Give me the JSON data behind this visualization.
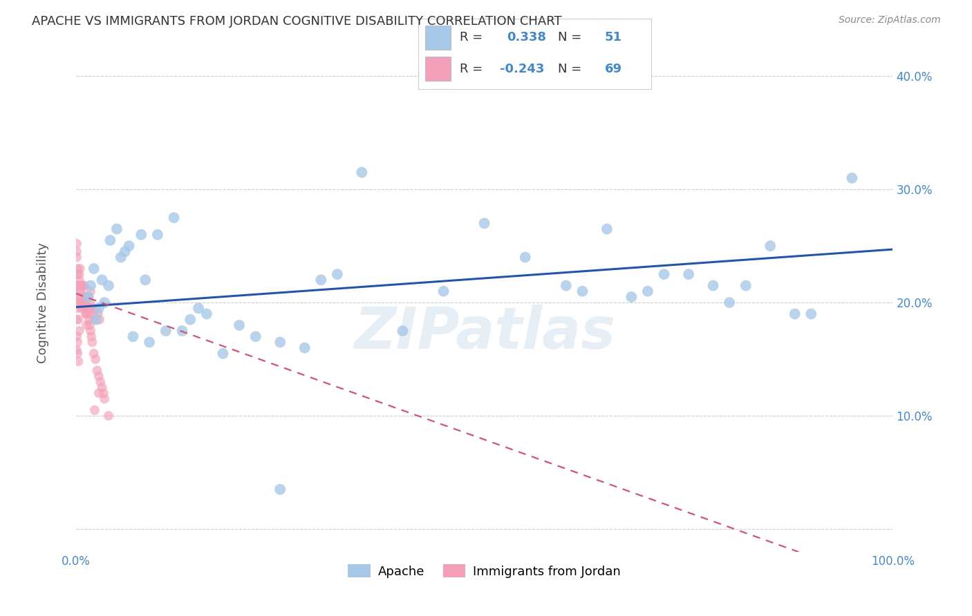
{
  "title": "APACHE VS IMMIGRANTS FROM JORDAN COGNITIVE DISABILITY CORRELATION CHART",
  "source": "Source: ZipAtlas.com",
  "ylabel": "Cognitive Disability",
  "xlim": [
    0.0,
    1.0
  ],
  "ylim": [
    -0.02,
    0.42
  ],
  "xticks": [
    0.0,
    0.1,
    0.2,
    0.3,
    0.4,
    0.5,
    0.6,
    0.7,
    0.8,
    0.9,
    1.0
  ],
  "xticklabels": [
    "0.0%",
    "",
    "",
    "",
    "",
    "",
    "",
    "",
    "",
    "",
    "100.0%"
  ],
  "yticks": [
    0.0,
    0.1,
    0.2,
    0.3,
    0.4
  ],
  "yticklabels": [
    "",
    "10.0%",
    "20.0%",
    "30.0%",
    "40.0%"
  ],
  "blue_color": "#a8c8e8",
  "pink_color": "#f4a0b8",
  "blue_line_color": "#2255aa",
  "pink_line_color": "#cc5577",
  "watermark": "ZIPatlas",
  "blue_scatter_x": [
    0.028,
    0.035,
    0.025,
    0.04,
    0.05,
    0.06,
    0.032,
    0.022,
    0.018,
    0.015,
    0.042,
    0.055,
    0.065,
    0.08,
    0.1,
    0.12,
    0.085,
    0.07,
    0.09,
    0.11,
    0.13,
    0.15,
    0.14,
    0.16,
    0.18,
    0.2,
    0.22,
    0.25,
    0.28,
    0.3,
    0.32,
    0.35,
    0.45,
    0.5,
    0.55,
    0.6,
    0.62,
    0.65,
    0.68,
    0.7,
    0.72,
    0.75,
    0.78,
    0.8,
    0.82,
    0.85,
    0.88,
    0.9,
    0.95,
    0.25,
    0.4
  ],
  "blue_scatter_y": [
    0.195,
    0.2,
    0.185,
    0.215,
    0.265,
    0.245,
    0.22,
    0.23,
    0.215,
    0.205,
    0.255,
    0.24,
    0.25,
    0.26,
    0.26,
    0.275,
    0.22,
    0.17,
    0.165,
    0.175,
    0.175,
    0.195,
    0.185,
    0.19,
    0.155,
    0.18,
    0.17,
    0.165,
    0.16,
    0.22,
    0.225,
    0.315,
    0.21,
    0.27,
    0.24,
    0.215,
    0.21,
    0.265,
    0.205,
    0.21,
    0.225,
    0.225,
    0.215,
    0.2,
    0.215,
    0.25,
    0.19,
    0.19,
    0.31,
    0.035,
    0.175
  ],
  "pink_scatter_x": [
    0.003,
    0.005,
    0.007,
    0.008,
    0.01,
    0.012,
    0.014,
    0.016,
    0.018,
    0.02,
    0.004,
    0.006,
    0.009,
    0.011,
    0.013,
    0.015,
    0.017,
    0.019,
    0.021,
    0.023,
    0.025,
    0.027,
    0.029,
    0.002,
    0.003,
    0.004,
    0.005,
    0.006,
    0.007,
    0.008,
    0.009,
    0.01,
    0.011,
    0.012,
    0.013,
    0.014,
    0.015,
    0.016,
    0.017,
    0.018,
    0.019,
    0.02,
    0.022,
    0.024,
    0.026,
    0.028,
    0.03,
    0.032,
    0.034,
    0.001,
    0.002,
    0.003,
    0.004,
    0.002,
    0.001,
    0.001,
    0.002,
    0.003,
    0.001,
    0.001,
    0.002,
    0.001,
    0.002,
    0.003,
    0.001,
    0.023,
    0.028,
    0.035,
    0.04
  ],
  "pink_scatter_y": [
    0.205,
    0.21,
    0.195,
    0.2,
    0.215,
    0.2,
    0.195,
    0.205,
    0.21,
    0.195,
    0.225,
    0.2,
    0.215,
    0.205,
    0.19,
    0.195,
    0.2,
    0.195,
    0.19,
    0.185,
    0.195,
    0.19,
    0.185,
    0.225,
    0.215,
    0.22,
    0.23,
    0.21,
    0.215,
    0.215,
    0.2,
    0.205,
    0.195,
    0.19,
    0.18,
    0.195,
    0.19,
    0.185,
    0.18,
    0.175,
    0.17,
    0.165,
    0.155,
    0.15,
    0.14,
    0.135,
    0.13,
    0.125,
    0.12,
    0.245,
    0.23,
    0.185,
    0.175,
    0.195,
    0.24,
    0.215,
    0.205,
    0.2,
    0.185,
    0.17,
    0.165,
    0.158,
    0.155,
    0.148,
    0.252,
    0.105,
    0.12,
    0.115,
    0.1
  ],
  "blue_trend": [
    0.0,
    1.0,
    0.196,
    0.247
  ],
  "pink_trend": [
    0.0,
    1.0,
    0.208,
    -0.05
  ],
  "background_color": "#ffffff",
  "grid_color": "#cccccc",
  "tick_color": "#4488cc",
  "label_color": "#555555",
  "title_color": "#333333"
}
